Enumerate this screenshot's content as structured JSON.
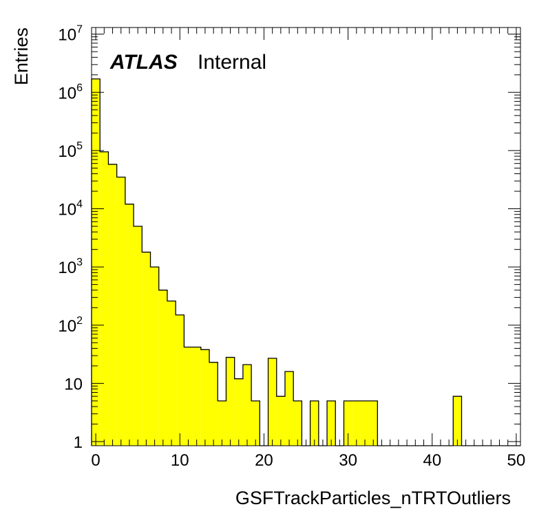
{
  "chart_data": {
    "type": "bar",
    "xlabel": "GSFTrackParticles_nTRTOutliers",
    "ylabel": "Entries",
    "label_main": "ATLAS",
    "label_sub": "Internal",
    "bin_width": 1,
    "xlim": [
      -0.5,
      50.5
    ],
    "ylim": [
      0.85,
      13000000
    ],
    "y_scale": "log",
    "grid": false,
    "fill_color": "#ffff00",
    "edge_color": "#000000",
    "x_ticks": [
      "0",
      "10",
      "20",
      "30",
      "40",
      "50"
    ],
    "y_ticks": [
      {
        "value": 1,
        "base": "1",
        "exp": ""
      },
      {
        "value": 10,
        "base": "10",
        "exp": ""
      },
      {
        "value": 100,
        "base": "10",
        "exp": "2"
      },
      {
        "value": 1000,
        "base": "10",
        "exp": "3"
      },
      {
        "value": 10000,
        "base": "10",
        "exp": "4"
      },
      {
        "value": 100000,
        "base": "10",
        "exp": "5"
      },
      {
        "value": 1000000,
        "base": "10",
        "exp": "6"
      },
      {
        "value": 10000000,
        "base": "10",
        "exp": "7"
      }
    ],
    "bins": [
      {
        "x": 0,
        "value": 1700000
      },
      {
        "x": 1,
        "value": 95000
      },
      {
        "x": 2,
        "value": 58000
      },
      {
        "x": 3,
        "value": 35000
      },
      {
        "x": 4,
        "value": 12000
      },
      {
        "x": 5,
        "value": 5000
      },
      {
        "x": 6,
        "value": 1800
      },
      {
        "x": 7,
        "value": 1000
      },
      {
        "x": 8,
        "value": 400
      },
      {
        "x": 9,
        "value": 260
      },
      {
        "x": 10,
        "value": 150
      },
      {
        "x": 11,
        "value": 42
      },
      {
        "x": 12,
        "value": 42
      },
      {
        "x": 13,
        "value": 38
      },
      {
        "x": 14,
        "value": 23
      },
      {
        "x": 15,
        "value": 5
      },
      {
        "x": 16,
        "value": 28
      },
      {
        "x": 17,
        "value": 12
      },
      {
        "x": 18,
        "value": 21
      },
      {
        "x": 19,
        "value": 5
      },
      {
        "x": 21,
        "value": 27
      },
      {
        "x": 22,
        "value": 6
      },
      {
        "x": 23,
        "value": 16
      },
      {
        "x": 24,
        "value": 5
      },
      {
        "x": 26,
        "value": 5
      },
      {
        "x": 28,
        "value": 5
      },
      {
        "x": 30,
        "value": 5
      },
      {
        "x": 31,
        "value": 5
      },
      {
        "x": 32,
        "value": 5
      },
      {
        "x": 33,
        "value": 5
      },
      {
        "x": 43,
        "value": 6
      }
    ]
  }
}
